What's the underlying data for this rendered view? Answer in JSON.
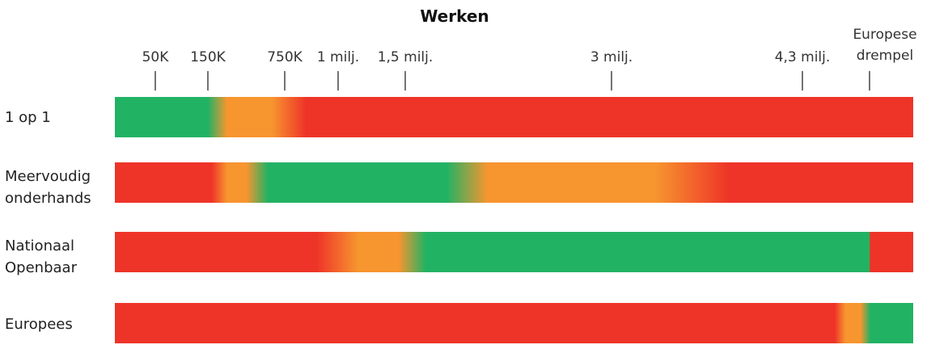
{
  "chart_data": {
    "type": "heatmap",
    "title": "Werken",
    "axis": {
      "min": 0,
      "max": 5548000,
      "ticks": [
        {
          "value": 50000,
          "label": "50K"
        },
        {
          "value": 150000,
          "label": "150K"
        },
        {
          "value": 750000,
          "label": "750K"
        },
        {
          "value": 1000000,
          "label": "1 milj."
        },
        {
          "value": 1500000,
          "label": "1,5 milj."
        },
        {
          "value": 3000000,
          "label": "3 milj."
        },
        {
          "value": 4300000,
          "label": "4,3 milj."
        },
        {
          "value": 5548000,
          "label": "Europese drempel",
          "lines": [
            "Europese",
            "drempel"
          ]
        }
      ]
    },
    "colors": {
      "green": "#22b264",
      "orange": "#f7952f",
      "red": "#ee3428"
    },
    "rows": [
      {
        "name": "1 op 1",
        "lines": [
          "1 op 1"
        ],
        "stops": [
          [
            0,
            "green"
          ],
          [
            150000,
            "green"
          ],
          [
            300000,
            "orange"
          ],
          [
            650000,
            "orange"
          ],
          [
            850000,
            "red"
          ],
          [
            6200000,
            "red"
          ]
        ]
      },
      {
        "name": "Meervoudig onderhands",
        "lines": [
          "Meervoudig",
          "onderhands"
        ],
        "stops": [
          [
            0,
            "red"
          ],
          [
            180000,
            "red"
          ],
          [
            300000,
            "orange"
          ],
          [
            450000,
            "orange"
          ],
          [
            620000,
            "green"
          ],
          [
            1800000,
            "green"
          ],
          [
            2100000,
            "orange"
          ],
          [
            3300000,
            "orange"
          ],
          [
            3800000,
            "red"
          ],
          [
            6200000,
            "red"
          ]
        ]
      },
      {
        "name": "Nationaal Openbaar",
        "lines": [
          "Nationaal",
          "Openbaar"
        ],
        "stops": [
          [
            0,
            "red"
          ],
          [
            900000,
            "red"
          ],
          [
            1150000,
            "orange"
          ],
          [
            1450000,
            "orange"
          ],
          [
            1650000,
            "green"
          ],
          [
            5540000,
            "green"
          ],
          [
            5560000,
            "red"
          ],
          [
            6200000,
            "red"
          ]
        ]
      },
      {
        "name": "Europees",
        "lines": [
          "Europees"
        ],
        "stops": [
          [
            0,
            "red"
          ],
          [
            4900000,
            "red"
          ],
          [
            5100000,
            "orange"
          ],
          [
            5380000,
            "orange"
          ],
          [
            5560000,
            "green"
          ],
          [
            6200000,
            "green"
          ]
        ]
      }
    ]
  }
}
